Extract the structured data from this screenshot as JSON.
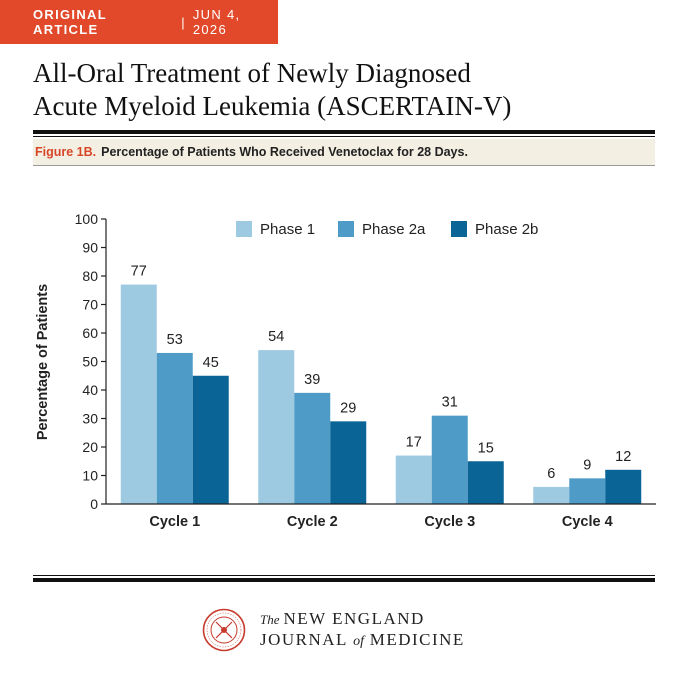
{
  "header": {
    "article_type": "ORIGINAL ARTICLE",
    "separator": "|",
    "date": "JUN 4, 2026"
  },
  "article": {
    "title_line1": "All-Oral Treatment of Newly Diagnosed",
    "title_line2": "Acute Myeloid Leukemia (ASCERTAIN-V)"
  },
  "figure": {
    "label": "Figure 1B.",
    "title": "Percentage of Patients Who Received Venetoclax for 28 Days."
  },
  "chart_data": {
    "type": "bar",
    "categories": [
      "Cycle 1",
      "Cycle 2",
      "Cycle 3",
      "Cycle 4"
    ],
    "series": [
      {
        "name": "Phase 1",
        "values": [
          77,
          54,
          17,
          6
        ],
        "color": "#9ecae1"
      },
      {
        "name": "Phase 2a",
        "values": [
          53,
          39,
          31,
          9
        ],
        "color": "#4f9bc7"
      },
      {
        "name": "Phase 2b",
        "values": [
          45,
          29,
          15,
          12
        ],
        "color": "#0a6496"
      }
    ],
    "ylabel": "Percentage of Patients",
    "xlabel": "",
    "ylim": [
      0,
      100
    ],
    "yticks": [
      0,
      10,
      20,
      30,
      40,
      50,
      60,
      70,
      80,
      90,
      100
    ],
    "grid": false,
    "legend_position": "top",
    "data_labels": true
  },
  "footer": {
    "the": "The",
    "journal_line1": "NEW ENGLAND",
    "journal_line2a": "JOURNAL",
    "journal_of": "of",
    "journal_line2b": "MEDICINE"
  },
  "colors": {
    "banner": "#e2492a",
    "figure_label": "#d8462a",
    "figure_bar_bg": "#f3efe2"
  }
}
